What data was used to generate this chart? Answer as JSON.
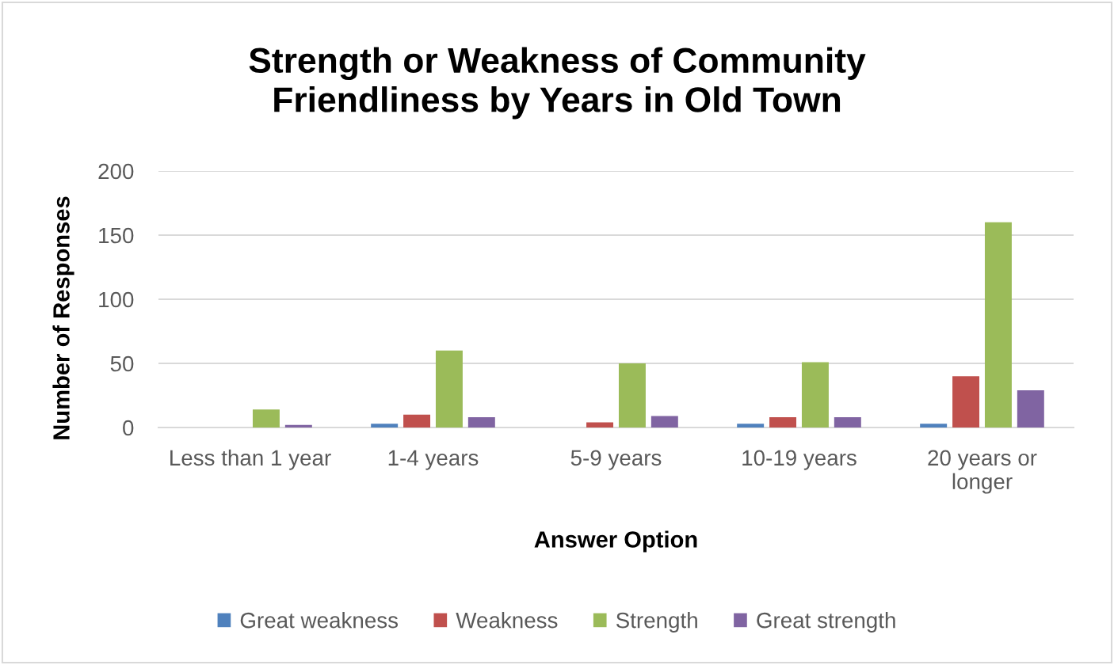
{
  "chart_data": {
    "type": "bar",
    "title": "Strength or Weakness of Community\nFriendliness by Years in Old Town",
    "xlabel": "Answer Option",
    "ylabel": "Number of Responses",
    "categories": [
      "Less than 1 year",
      "1-4 years",
      "5-9 years",
      "10-19 years",
      "20 years or\nlonger"
    ],
    "series": [
      {
        "name": "Great weakness",
        "color": "#4f81bd",
        "values": [
          0,
          3,
          0,
          3,
          3
        ]
      },
      {
        "name": "Weakness",
        "color": "#c0504d",
        "values": [
          0,
          10,
          4,
          8,
          40
        ]
      },
      {
        "name": "Strength",
        "color": "#9bbb59",
        "values": [
          14,
          60,
          50,
          51,
          160
        ]
      },
      {
        "name": "Great strength",
        "color": "#8064a2",
        "values": [
          2,
          8,
          9,
          8,
          29
        ]
      }
    ],
    "ylim": [
      0,
      200
    ],
    "yticks": [
      0,
      50,
      100,
      150,
      200
    ],
    "grid": "y",
    "legend": "bottom"
  }
}
